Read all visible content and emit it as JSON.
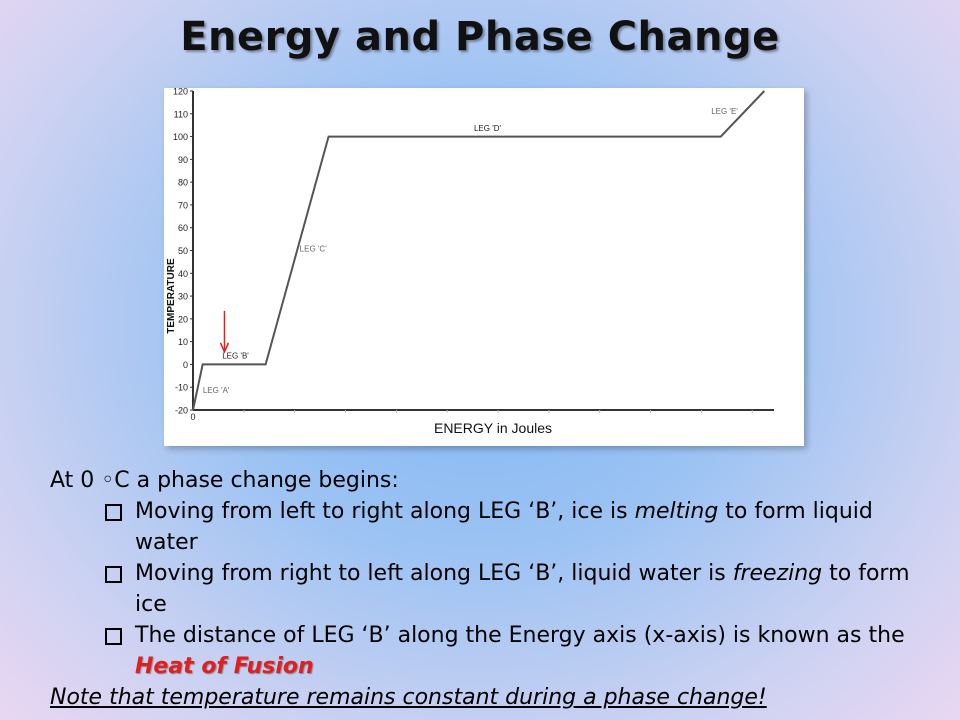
{
  "slide": {
    "title": "Energy and Phase Change"
  },
  "chart_data": {
    "type": "line",
    "xlabel": "ENERGY in Joules",
    "ylabel": "TEMPERATURE",
    "ylim": [
      -20,
      120
    ],
    "yticks": [
      -20,
      -10,
      0,
      10,
      20,
      30,
      40,
      50,
      60,
      70,
      80,
      90,
      100,
      110,
      120
    ],
    "x_tick_label": "0",
    "series": [
      {
        "x": [
          0,
          2,
          15,
          28,
          109,
          118
        ],
        "y": [
          -20,
          0,
          0,
          100,
          100,
          120
        ]
      }
    ],
    "annotations": [
      {
        "text": "LEG 'A'",
        "near": "rising segment from -20 to 0"
      },
      {
        "text": "LEG 'B'",
        "near": "plateau at 0"
      },
      {
        "text": "LEG 'C'",
        "near": "rising segment from 0 to 100"
      },
      {
        "text": "LEG 'D'",
        "near": "plateau at 100"
      },
      {
        "text": "LEG 'E'",
        "near": "rising segment above 100"
      }
    ],
    "arrow_color": "#e0201c",
    "grid": false
  },
  "content": {
    "intro": "At 0 ◦C a phase change begins:",
    "bullets": [
      {
        "pre": "Moving from left to right along LEG ‘B’, ice is ",
        "em": "melting",
        "post": " to form liquid water"
      },
      {
        "pre": "Moving from right to left along LEG ‘B’, liquid water is ",
        "em": "freezing",
        "post": " to form ice"
      },
      {
        "pre": "The distance of LEG ‘B’ along the Energy axis (x-axis) is known as the ",
        "highlight": "Heat of Fusion",
        "post": ""
      }
    ],
    "note": "Note that temperature remains constant during a phase change",
    "note_end": "!"
  },
  "colors": {
    "highlight": "#e0201c"
  }
}
